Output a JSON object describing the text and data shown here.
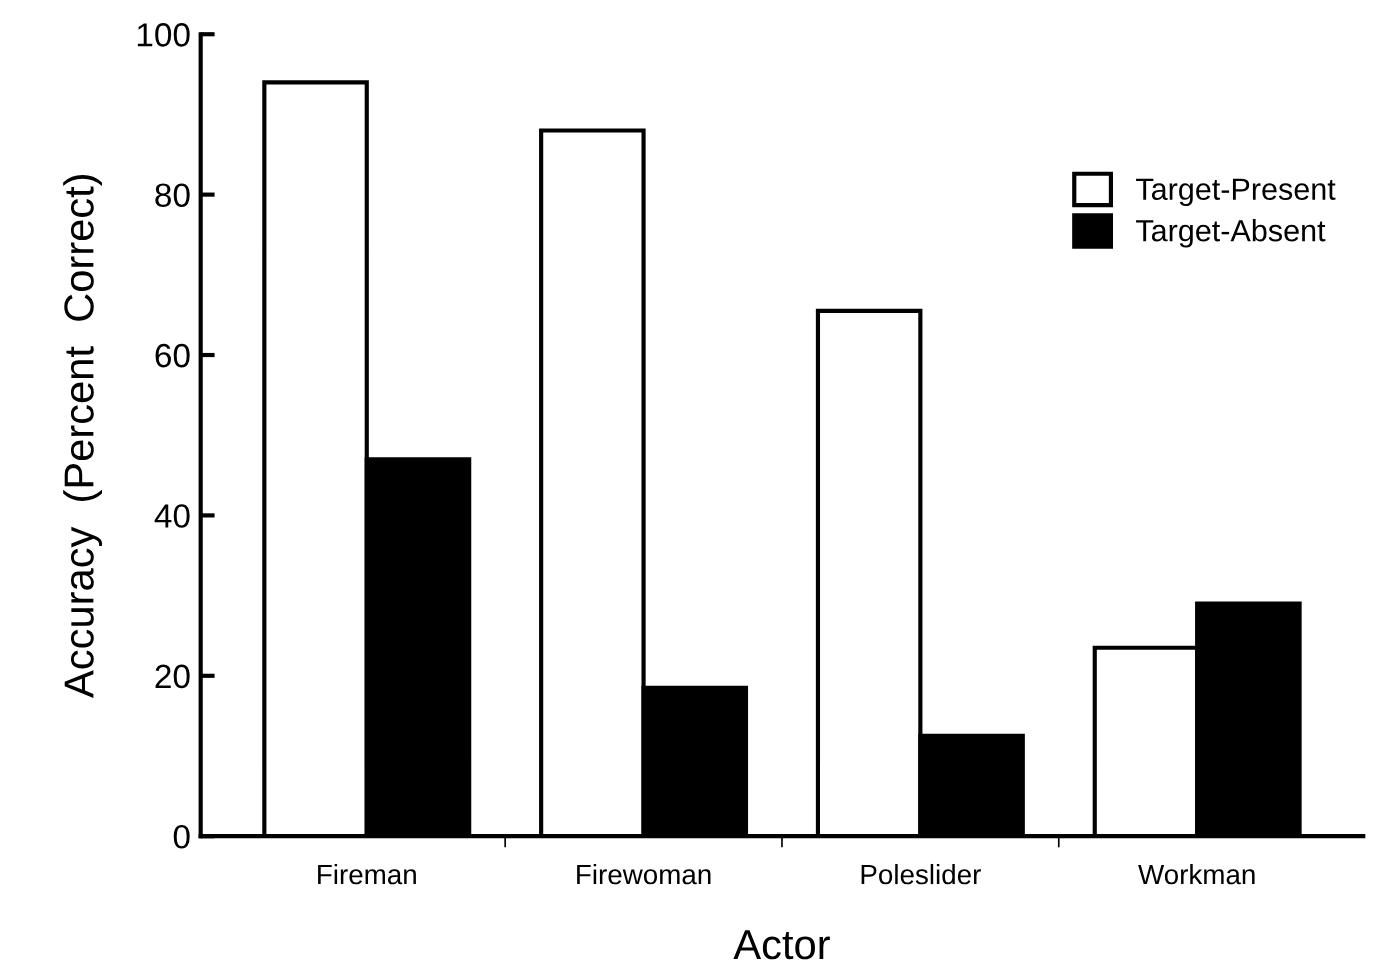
{
  "chart_data": {
    "type": "bar",
    "xlabel": "Actor",
    "ylabel": "Accuracy  (Percent  Correct)",
    "categories": [
      "Fireman",
      "Firewoman",
      "Poleslider",
      "Workman"
    ],
    "series": [
      {
        "name": "Target-Present",
        "color": "#ffffff",
        "values": [
          94,
          88,
          65.5,
          23.5
        ]
      },
      {
        "name": "Target-Absent",
        "color": "#000000",
        "values": [
          47,
          18.5,
          12.5,
          29
        ]
      }
    ],
    "ylim": [
      0,
      100
    ],
    "yticks": [
      0,
      20,
      40,
      60,
      80,
      100
    ],
    "grid": false,
    "legend": "right"
  }
}
